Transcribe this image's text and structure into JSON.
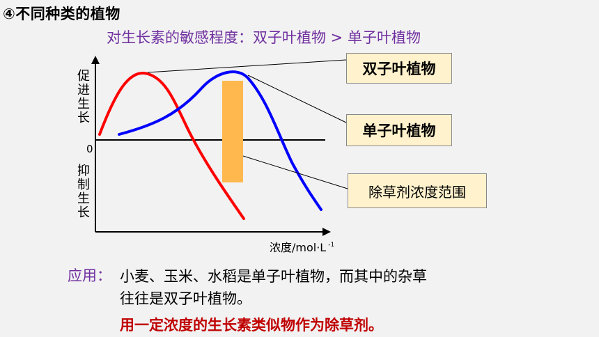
{
  "heading": "④不同种类的植物",
  "subtitle": "对生长素的敏感程度：双子叶植物 > 单子叶植物",
  "boxes": {
    "dicot": "双子叶植物",
    "monocot": "单子叶植物",
    "herbicide_range": "除草剂浓度范围"
  },
  "y_axis": {
    "promote": [
      "促",
      "进",
      "生",
      "长"
    ],
    "zero": "0",
    "inhibit": [
      "抑",
      "制",
      "生",
      "长"
    ]
  },
  "x_axis": {
    "label": "浓度/mol·L",
    "exponent": "-1"
  },
  "application": {
    "label": "应用：",
    "line1": "小麦、玉米、水稻是单子叶植物，而其中的杂草",
    "line2": "往往是双子叶植物。",
    "conclusion": "用一定浓度的生长素类似物作为除草剂。"
  },
  "colors": {
    "dicot_curve": "#ff0000",
    "monocot_curve": "#0000ff",
    "herbicide_band": "#ffb84d",
    "subtitle": "#7030a0",
    "conclusion": "#c00000"
  }
}
